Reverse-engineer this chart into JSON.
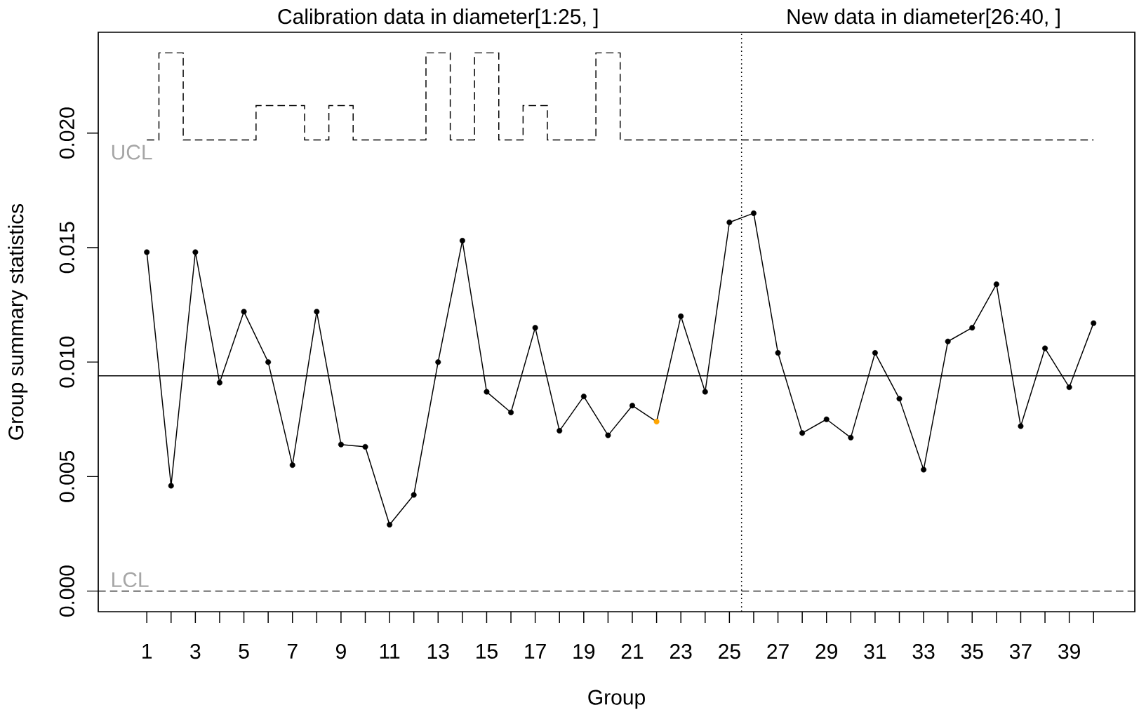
{
  "chart_data": {
    "type": "line",
    "xlabel": "Group",
    "ylabel": "Group summary statistics",
    "annotations": [
      "Calibration data in diameter[1:25, ]",
      "New data in diameter[26:40, ]"
    ],
    "legend": "left",
    "x": [
      1,
      2,
      3,
      4,
      5,
      6,
      7,
      8,
      9,
      10,
      11,
      12,
      13,
      14,
      15,
      16,
      17,
      18,
      19,
      20,
      21,
      22,
      23,
      24,
      25,
      26,
      27,
      28,
      29,
      30,
      31,
      32,
      33,
      34,
      35,
      36,
      37,
      38,
      39,
      40
    ],
    "xlim": [
      -1,
      41.7
    ],
    "xticks": [
      1,
      {
        "value": 2,
        "label": null
      },
      3,
      {
        "value": 4,
        "label": null
      },
      5,
      {
        "value": 6,
        "label": null
      },
      7,
      {
        "value": 8,
        "label": null
      },
      9,
      {
        "value": 10,
        "label": null
      },
      11,
      {
        "value": 12,
        "label": null
      },
      13,
      {
        "value": 14,
        "label": null
      },
      15,
      {
        "value": 16,
        "label": null
      },
      17,
      {
        "value": 18,
        "label": null
      },
      19,
      {
        "value": 20,
        "label": null
      },
      21,
      {
        "value": 22,
        "label": null
      },
      23,
      {
        "value": 24,
        "label": null
      },
      25,
      {
        "value": 26,
        "label": null
      },
      27,
      {
        "value": 28,
        "label": null
      },
      29,
      {
        "value": 30,
        "label": null
      },
      31,
      {
        "value": 32,
        "label": null
      },
      33,
      {
        "value": 34,
        "label": null
      },
      35,
      {
        "value": 36,
        "label": null
      },
      37,
      {
        "value": 38,
        "label": null
      },
      39,
      {
        "value": 40,
        "label": null
      }
    ],
    "ylim": [
      -0.0009,
      0.0244
    ],
    "yticks": [
      {
        "value": 0,
        "label": "0.000"
      },
      {
        "value": 0.005,
        "label": "0.005"
      },
      {
        "value": 0.01,
        "label": "0.010"
      },
      {
        "value": 0.015,
        "label": "0.015"
      },
      {
        "value": 0.02,
        "label": "0.020"
      }
    ],
    "series": [
      {
        "name": "UCL",
        "type": "step",
        "color": "#000000",
        "line_style": "dashed",
        "values": [
          0.0197,
          0.0235,
          0.0197,
          0.0197,
          0.0197,
          0.0212,
          0.0212,
          0.0197,
          0.0212,
          0.0197,
          0.0197,
          0.0197,
          0.0235,
          0.0197,
          0.0235,
          0.0197,
          0.0212,
          0.0197,
          0.0197,
          0.0235,
          0.0197,
          0.0197,
          0.0197,
          0.0197,
          0.0197,
          0.0197,
          0.0197,
          0.0197,
          0.0197,
          0.0197,
          0.0197,
          0.0197,
          0.0197,
          0.0197,
          0.0197,
          0.0197,
          0.0197,
          0.0197,
          0.0197,
          0.0197
        ]
      },
      {
        "type": "line",
        "color": "#000000",
        "marker": "circle",
        "colors": [
          "#000000",
          "#000000",
          "#000000",
          "#000000",
          "#000000",
          "#000000",
          "#000000",
          "#000000",
          "#000000",
          "#000000",
          "#000000",
          "#000000",
          "#000000",
          "#000000",
          "#000000",
          "#000000",
          "#000000",
          "#000000",
          "#000000",
          "#000000",
          "#000000",
          "#ffa500",
          "#000000",
          "#000000",
          "#000000",
          "#000000",
          "#000000",
          "#000000",
          "#000000",
          "#000000",
          "#000000",
          "#000000",
          "#000000",
          "#000000",
          "#000000",
          "#000000",
          "#000000",
          "#000000",
          "#000000",
          "#000000"
        ],
        "values": [
          0.0148,
          0.0046,
          0.0148,
          0.0091,
          0.0122,
          0.01,
          0.0055,
          0.0122,
          0.0064,
          0.0063,
          0.0029,
          0.0042,
          0.01,
          0.0153,
          0.0087,
          0.0078,
          0.0115,
          0.007,
          0.0085,
          0.0068,
          0.0081,
          0.0074,
          0.012,
          0.0087,
          0.0161,
          0.0165,
          0.0104,
          0.0069,
          0.0075,
          0.0067,
          0.0104,
          0.0084,
          0.0053,
          0.0109,
          0.0115,
          0.0134,
          0.0072,
          0.0106,
          0.0089,
          0.0117
        ]
      }
    ],
    "ref_lines": [
      {
        "axis": "y",
        "value": 0.0094,
        "color": "#000000",
        "line_style": "solid"
      },
      {
        "axis": "y",
        "value": 0,
        "label": "LCL",
        "color": "#000000",
        "line_style": "dashed"
      },
      {
        "axis": "x",
        "value": 25.5,
        "color": "#000000",
        "line_style": "dotted"
      }
    ]
  }
}
